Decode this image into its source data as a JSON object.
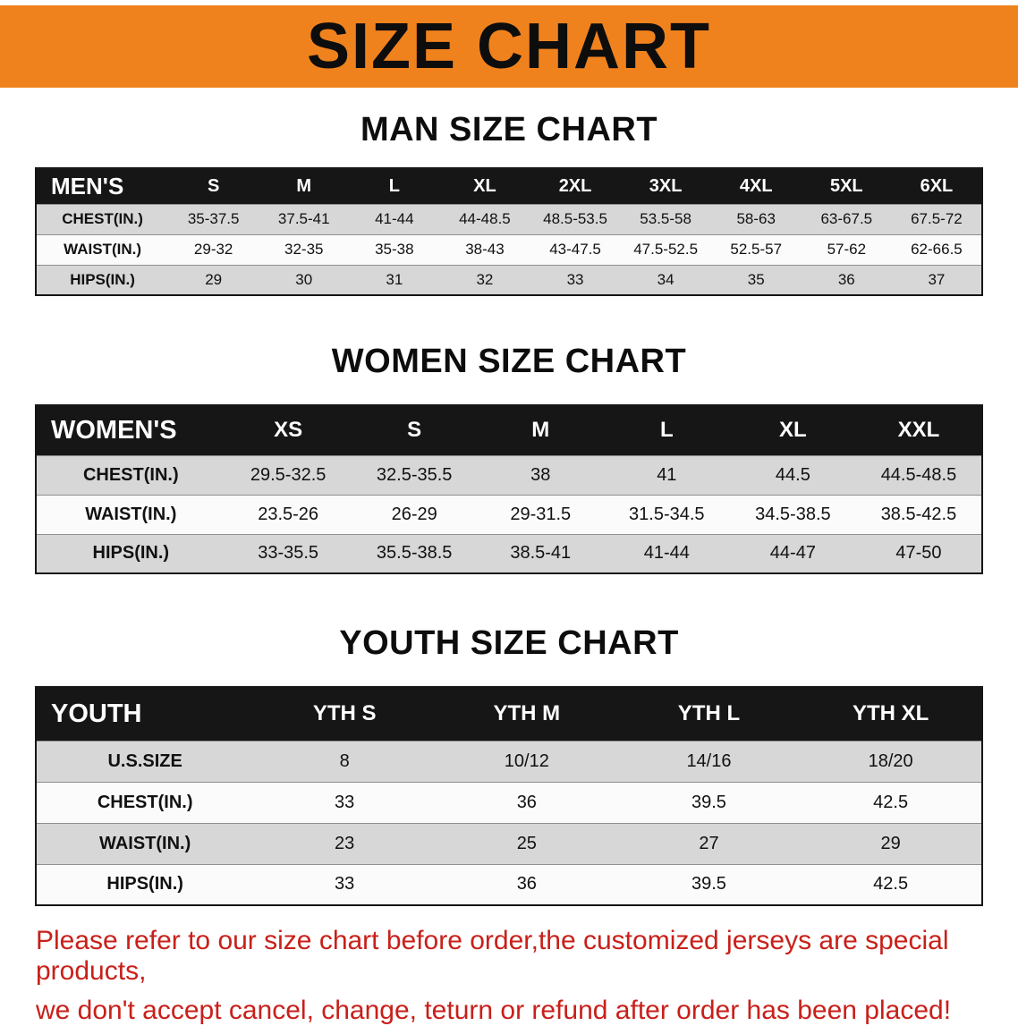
{
  "banner": {
    "title": "SIZE CHART",
    "bg_color": "#F0821E",
    "text_color": "#0d0d0d"
  },
  "sections": [
    {
      "heading": "MAN SIZE CHART",
      "table": {
        "name": "mens",
        "corner": "MEN'S",
        "columns": [
          "S",
          "M",
          "L",
          "XL",
          "2XL",
          "3XL",
          "4XL",
          "5XL",
          "6XL"
        ],
        "rows": [
          {
            "label": "CHEST(IN.)",
            "values": [
              "35-37.5",
              "37.5-41",
              "41-44",
              "44-48.5",
              "48.5-53.5",
              "53.5-58",
              "58-63",
              "63-67.5",
              "67.5-72"
            ]
          },
          {
            "label": "WAIST(IN.)",
            "values": [
              "29-32",
              "32-35",
              "35-38",
              "38-43",
              "43-47.5",
              "47.5-52.5",
              "52.5-57",
              "57-62",
              "62-66.5"
            ]
          },
          {
            "label": "HIPS(IN.)",
            "values": [
              "29",
              "30",
              "31",
              "32",
              "33",
              "34",
              "35",
              "36",
              "37"
            ]
          }
        ]
      }
    },
    {
      "heading": "WOMEN SIZE CHART",
      "table": {
        "name": "womens",
        "corner": "WOMEN'S",
        "columns": [
          "XS",
          "S",
          "M",
          "L",
          "XL",
          "XXL"
        ],
        "rows": [
          {
            "label": "CHEST(IN.)",
            "values": [
              "29.5-32.5",
              "32.5-35.5",
              "38",
              "41",
              "44.5",
              "44.5-48.5"
            ]
          },
          {
            "label": "WAIST(IN.)",
            "values": [
              "23.5-26",
              "26-29",
              "29-31.5",
              "31.5-34.5",
              "34.5-38.5",
              "38.5-42.5"
            ]
          },
          {
            "label": "HIPS(IN.)",
            "values": [
              "33-35.5",
              "35.5-38.5",
              "38.5-41",
              "41-44",
              "44-47",
              "47-50"
            ]
          }
        ]
      }
    },
    {
      "heading": "YOUTH SIZE CHART",
      "table": {
        "name": "youth",
        "corner": "YOUTH",
        "columns": [
          "YTH S",
          "YTH M",
          "YTH L",
          "YTH XL"
        ],
        "rows": [
          {
            "label": "U.S.SIZE",
            "values": [
              "8",
              "10/12",
              "14/16",
              "18/20"
            ]
          },
          {
            "label": "CHEST(IN.)",
            "values": [
              "33",
              "36",
              "39.5",
              "42.5"
            ]
          },
          {
            "label": "WAIST(IN.)",
            "values": [
              "23",
              "25",
              "27",
              "29"
            ]
          },
          {
            "label": "HIPS(IN.)",
            "values": [
              "33",
              "36",
              "39.5",
              "42.5"
            ]
          }
        ]
      }
    }
  ],
  "footer": {
    "line1": "Please refer to our size chart before order,the customized jerseys are special products,",
    "line2": "we don't accept cancel, change, teturn or refund after order has been placed!",
    "color": "#c8201a"
  }
}
